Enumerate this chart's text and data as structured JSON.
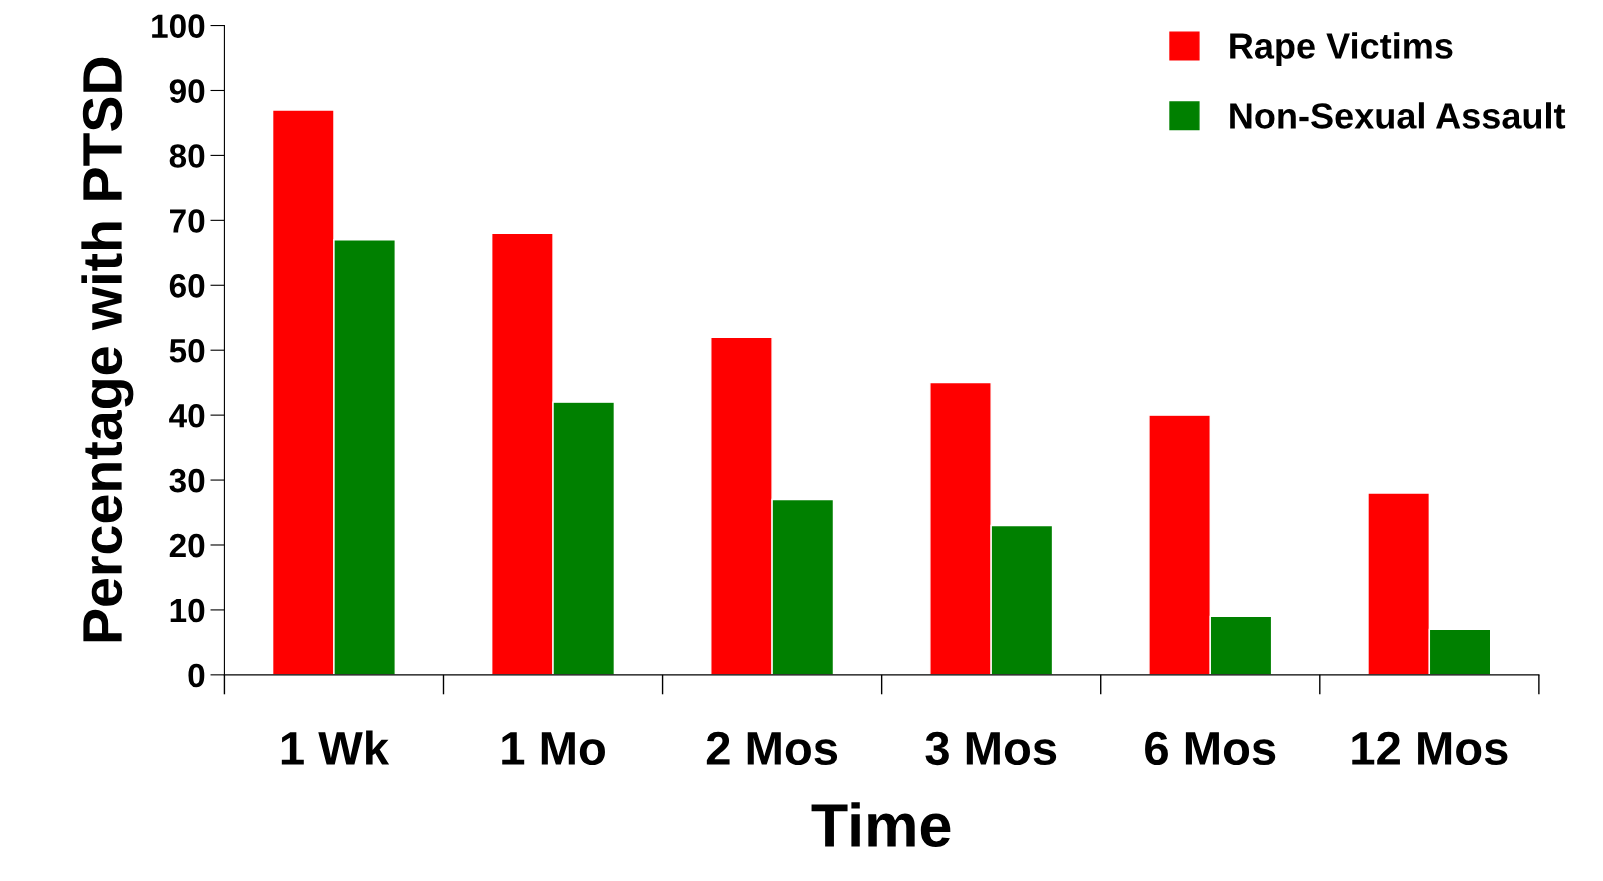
{
  "chart_data": {
    "type": "bar",
    "xlabel": "Time",
    "ylabel": "Percentage with PTSD",
    "categories": [
      "1 Wk",
      "1 Mo",
      "2 Mos",
      "3 Mos",
      "6 Mos",
      "12 Mos"
    ],
    "series": [
      {
        "name": "Rape Victims",
        "color": "#ff0000",
        "values": [
          87,
          68,
          52,
          45,
          40,
          28
        ]
      },
      {
        "name": "Non-Sexual Assault",
        "color": "#008000",
        "values": [
          67,
          42,
          27,
          23,
          9,
          7
        ]
      }
    ],
    "ylim": [
      0,
      100
    ],
    "yticks": [
      0,
      10,
      20,
      30,
      40,
      50,
      60,
      70,
      80,
      90,
      100
    ],
    "grid": false,
    "legend": "top right"
  }
}
